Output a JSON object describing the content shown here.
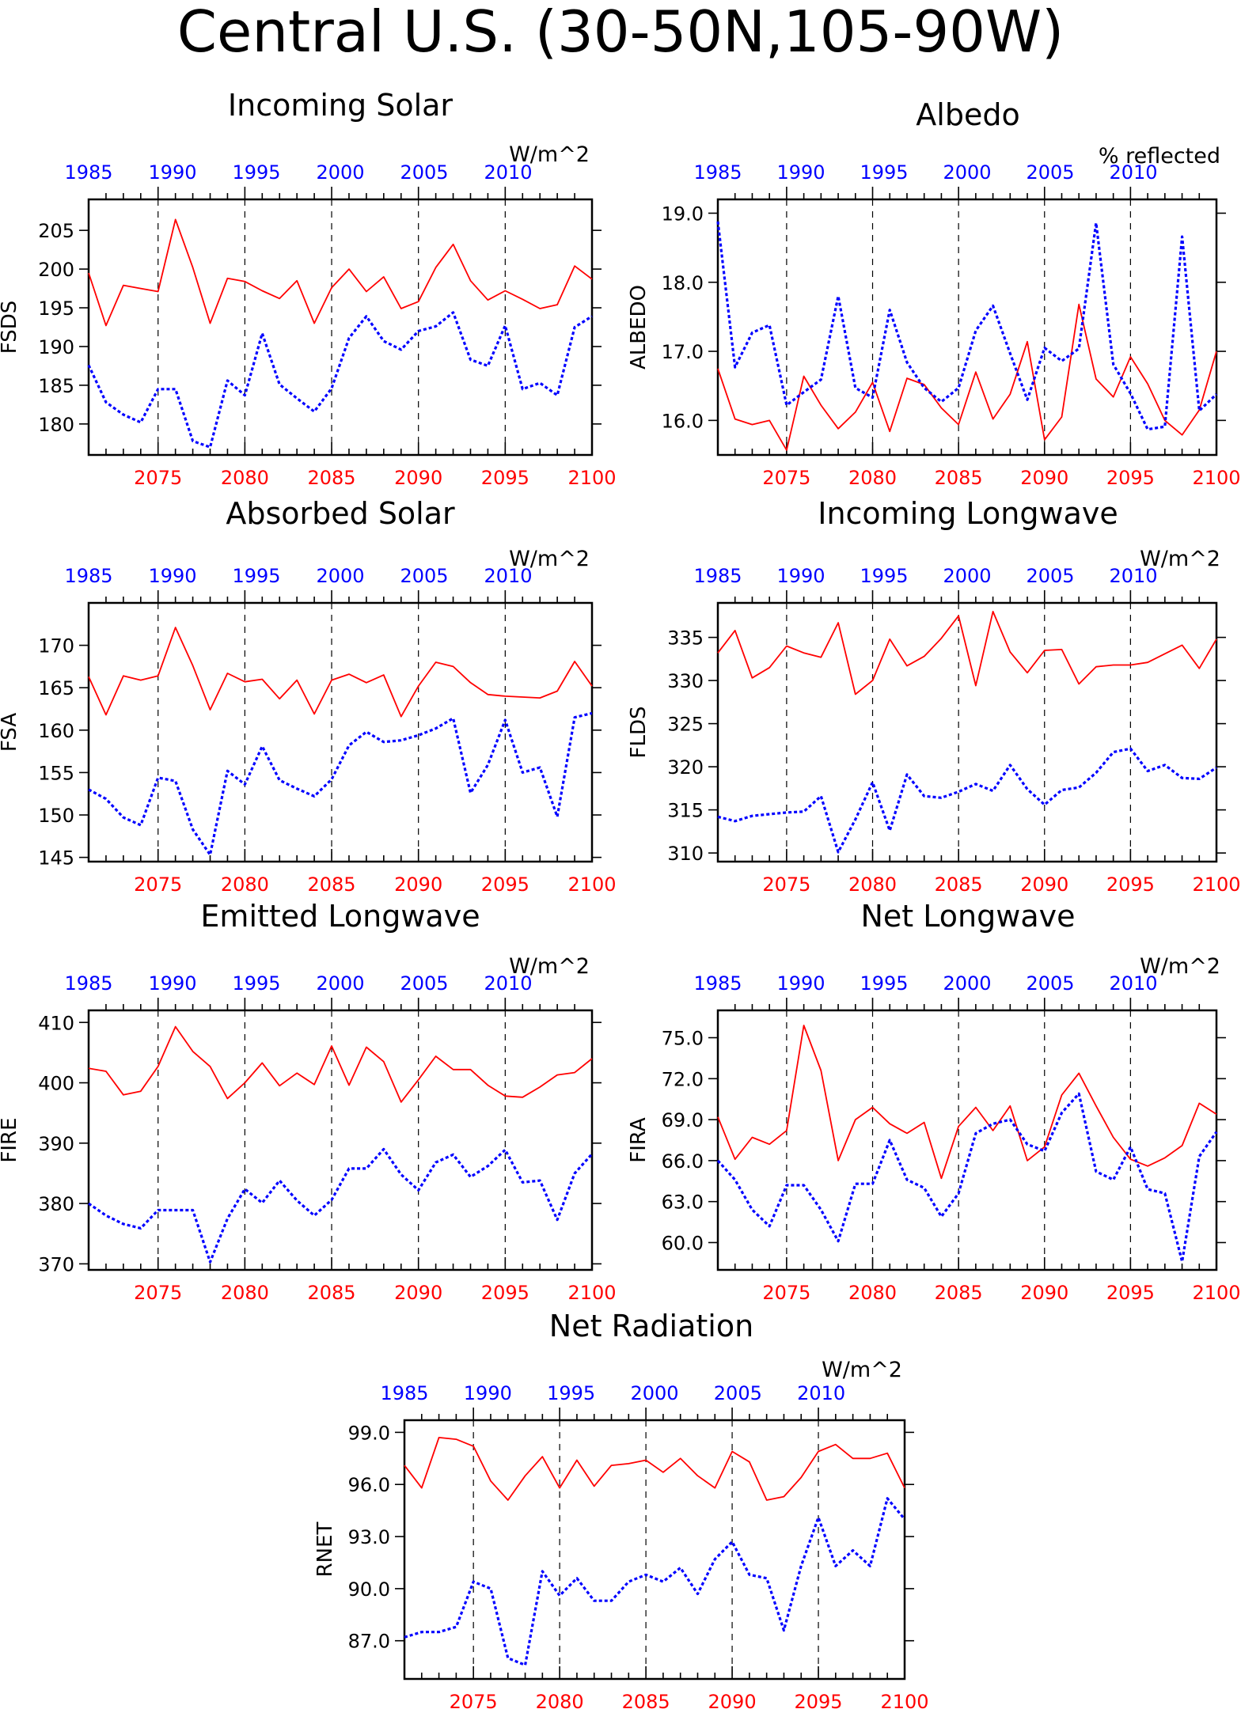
{
  "figure_title": "Central U.S. (30-50N,105-90W)",
  "colors": {
    "future_series": "#ff0000",
    "historical_series": "#0000ff",
    "axes": "#000000"
  },
  "chart_data": [
    {
      "type": "line",
      "title": "Incoming Solar",
      "units": "W/m^2",
      "ylabel": "FSDS",
      "ylim": [
        176,
        209
      ],
      "yticks": [
        180,
        185,
        190,
        195,
        200,
        205
      ],
      "ytick_labels": [
        "180",
        "185",
        "190",
        "195",
        "200",
        "205"
      ],
      "xlim": [
        2071,
        2100
      ],
      "bottom_ticks": [
        2075,
        2080,
        2085,
        2090,
        2095,
        2100
      ],
      "top_ticks": [
        1985,
        1990,
        1995,
        2000,
        2005,
        2010
      ],
      "series": [
        {
          "values": [
            199.5,
            192.7,
            197.9,
            197.5,
            197.1,
            206.4,
            200.2,
            193.0,
            198.8,
            198.4,
            197.2,
            196.2,
            198.5,
            193.0,
            197.6,
            200.0,
            197.1,
            199.0,
            194.9,
            195.8,
            200.2,
            203.2,
            198.5,
            196.0,
            197.2,
            196.1,
            194.9,
            195.4,
            200.4,
            198.7
          ]
        },
        {
          "values": [
            187.6,
            182.8,
            181.2,
            180.2,
            184.5,
            184.5,
            177.8,
            177.0,
            185.6,
            183.7,
            191.7,
            185.1,
            183.3,
            181.6,
            184.6,
            191.1,
            193.9,
            190.7,
            189.6,
            192.0,
            192.6,
            194.4,
            188.3,
            187.5,
            192.7,
            184.5,
            185.3,
            183.7,
            192.5,
            193.9
          ]
        }
      ]
    },
    {
      "type": "line",
      "title": "Albedo",
      "units": "% reflected",
      "ylabel": "ALBEDO",
      "ylim": [
        15.5,
        19.2
      ],
      "yticks": [
        16.0,
        17.0,
        18.0,
        19.0
      ],
      "ytick_labels": [
        "16.0",
        "17.0",
        "18.0",
        "19.0"
      ],
      "xlim": [
        2071,
        2100
      ],
      "bottom_ticks": [
        2075,
        2080,
        2085,
        2090,
        2095,
        2100
      ],
      "top_ticks": [
        1985,
        1990,
        1995,
        2000,
        2005,
        2010
      ],
      "series": [
        {
          "values": [
            16.75,
            16.02,
            15.94,
            16.0,
            15.57,
            16.64,
            16.22,
            15.88,
            16.12,
            16.55,
            15.84,
            16.61,
            16.52,
            16.18,
            15.94,
            16.7,
            16.02,
            16.38,
            17.14,
            15.72,
            16.05,
            17.68,
            16.6,
            16.34,
            16.92,
            16.53,
            16.0,
            15.79,
            16.15,
            17.0
          ]
        },
        {
          "values": [
            18.88,
            16.77,
            17.27,
            17.38,
            16.22,
            16.41,
            16.59,
            17.8,
            16.47,
            16.33,
            17.6,
            16.84,
            16.47,
            16.27,
            16.47,
            17.3,
            17.66,
            16.97,
            16.3,
            17.05,
            16.86,
            17.04,
            18.86,
            16.81,
            16.39,
            15.87,
            15.91,
            18.66,
            16.14,
            16.38
          ]
        }
      ]
    },
    {
      "type": "line",
      "title": "Absorbed Solar",
      "units": "W/m^2",
      "ylabel": "FSA",
      "ylim": [
        144.5,
        175
      ],
      "yticks": [
        145,
        150,
        155,
        160,
        165,
        170
      ],
      "ytick_labels": [
        "145",
        "150",
        "155",
        "160",
        "165",
        "170"
      ],
      "xlim": [
        2071,
        2100
      ],
      "bottom_ticks": [
        2075,
        2080,
        2085,
        2090,
        2095,
        2100
      ],
      "top_ticks": [
        1985,
        1990,
        1995,
        2000,
        2005,
        2010
      ],
      "series": [
        {
          "values": [
            166.3,
            161.8,
            166.4,
            165.9,
            166.4,
            172.1,
            167.6,
            162.4,
            166.7,
            165.7,
            166.0,
            163.7,
            165.9,
            161.9,
            165.9,
            166.6,
            165.6,
            166.5,
            161.6,
            165.2,
            168.0,
            167.5,
            165.6,
            164.2,
            164.0,
            163.9,
            163.8,
            164.6,
            168.1,
            165.2
          ]
        },
        {
          "values": [
            153.0,
            151.9,
            149.7,
            148.8,
            154.4,
            154.0,
            148.3,
            145.3,
            155.2,
            153.6,
            158.1,
            154.1,
            153.1,
            152.2,
            154.2,
            158.2,
            159.8,
            158.6,
            158.8,
            159.4,
            160.2,
            161.4,
            152.6,
            155.9,
            161.2,
            155.0,
            155.6,
            149.8,
            161.5,
            162.0
          ]
        }
      ]
    },
    {
      "type": "line",
      "title": "Incoming Longwave",
      "units": "W/m^2",
      "ylabel": "FLDS",
      "ylim": [
        309,
        339
      ],
      "yticks": [
        310,
        315,
        320,
        325,
        330,
        335
      ],
      "ytick_labels": [
        "310",
        "315",
        "320",
        "325",
        "330",
        "335"
      ],
      "xlim": [
        2071,
        2100
      ],
      "bottom_ticks": [
        2075,
        2080,
        2085,
        2090,
        2095,
        2100
      ],
      "top_ticks": [
        1985,
        1990,
        1995,
        2000,
        2005,
        2010
      ],
      "series": [
        {
          "values": [
            333.2,
            335.8,
            330.3,
            331.5,
            334.0,
            333.2,
            332.7,
            336.7,
            328.4,
            330.0,
            334.8,
            331.7,
            332.8,
            334.9,
            337.5,
            329.4,
            338.0,
            333.3,
            330.9,
            333.5,
            333.6,
            329.6,
            331.6,
            331.8,
            331.8,
            332.1,
            333.1,
            334.1,
            331.4,
            334.8
          ]
        },
        {
          "values": [
            314.2,
            313.7,
            314.3,
            314.5,
            314.7,
            314.8,
            316.6,
            310.1,
            313.9,
            318.2,
            312.6,
            319.1,
            316.6,
            316.4,
            317.1,
            318.0,
            317.2,
            320.2,
            317.4,
            315.6,
            317.3,
            317.6,
            319.3,
            321.7,
            322.1,
            319.5,
            320.2,
            318.7,
            318.6,
            319.9
          ]
        }
      ]
    },
    {
      "type": "line",
      "title": "Emitted Longwave",
      "units": "W/m^2",
      "ylabel": "FIRE",
      "ylim": [
        369,
        412
      ],
      "yticks": [
        370,
        380,
        390,
        400,
        410
      ],
      "ytick_labels": [
        "370",
        "380",
        "390",
        "400",
        "410"
      ],
      "xlim": [
        2071,
        2100
      ],
      "bottom_ticks": [
        2075,
        2080,
        2085,
        2090,
        2095,
        2100
      ],
      "top_ticks": [
        1985,
        1990,
        1995,
        2000,
        2005,
        2010
      ],
      "series": [
        {
          "values": [
            402.4,
            401.9,
            398.0,
            398.6,
            402.7,
            409.3,
            405.2,
            402.7,
            397.4,
            400.0,
            403.3,
            399.5,
            401.6,
            399.7,
            406.1,
            399.6,
            405.9,
            403.5,
            396.8,
            400.5,
            404.4,
            402.2,
            402.2,
            399.6,
            397.8,
            397.6,
            399.3,
            401.3,
            401.7,
            404.0
          ]
        },
        {
          "values": [
            380.0,
            378.0,
            376.6,
            375.9,
            378.9,
            378.9,
            378.9,
            370.3,
            377.5,
            382.4,
            380.1,
            383.8,
            380.5,
            378.0,
            380.6,
            385.8,
            385.8,
            389.0,
            384.8,
            382.2,
            386.8,
            388.1,
            384.4,
            386.2,
            388.9,
            383.5,
            383.8,
            377.3,
            385.0,
            388.2
          ]
        }
      ]
    },
    {
      "type": "line",
      "title": "Net Longwave",
      "units": "W/m^2",
      "ylabel": "FIRA",
      "ylim": [
        58,
        77
      ],
      "yticks": [
        60.0,
        63.0,
        66.0,
        69.0,
        72.0,
        75.0
      ],
      "ytick_labels": [
        "60.0",
        "63.0",
        "66.0",
        "69.0",
        "72.0",
        "75.0"
      ],
      "xlim": [
        2071,
        2100
      ],
      "bottom_ticks": [
        2075,
        2080,
        2085,
        2090,
        2095,
        2100
      ],
      "top_ticks": [
        1985,
        1990,
        1995,
        2000,
        2005,
        2010
      ],
      "series": [
        {
          "values": [
            69.2,
            66.1,
            67.7,
            67.2,
            68.2,
            75.9,
            72.6,
            66.0,
            69.0,
            69.9,
            68.7,
            68.0,
            68.8,
            64.7,
            68.5,
            69.9,
            68.2,
            70.0,
            66.0,
            67.0,
            70.8,
            72.4,
            70.0,
            67.7,
            66.1,
            65.6,
            66.2,
            67.1,
            70.2,
            69.4
          ]
        },
        {
          "values": [
            66.0,
            64.6,
            62.4,
            61.2,
            64.2,
            64.2,
            62.4,
            60.1,
            64.3,
            64.3,
            67.5,
            64.6,
            64.0,
            61.9,
            63.6,
            68.0,
            68.7,
            69.0,
            67.2,
            66.7,
            69.5,
            70.9,
            65.2,
            64.6,
            67.0,
            63.9,
            63.6,
            58.6,
            66.3,
            68.1
          ]
        }
      ]
    },
    {
      "type": "line",
      "title": "Net Radiation",
      "units": "W/m^2",
      "ylabel": "RNET",
      "ylim": [
        84.8,
        99.7
      ],
      "yticks": [
        87.0,
        90.0,
        93.0,
        96.0,
        99.0
      ],
      "ytick_labels": [
        "87.0",
        "90.0",
        "93.0",
        "96.0",
        "99.0"
      ],
      "xlim": [
        2071,
        2100
      ],
      "bottom_ticks": [
        2075,
        2080,
        2085,
        2090,
        2095,
        2100
      ],
      "top_ticks": [
        1985,
        1990,
        1995,
        2000,
        2005,
        2010
      ],
      "series": [
        {
          "values": [
            97.1,
            95.8,
            98.7,
            98.6,
            98.2,
            96.2,
            95.1,
            96.5,
            97.6,
            95.8,
            97.4,
            95.9,
            97.1,
            97.2,
            97.4,
            96.7,
            97.5,
            96.5,
            95.8,
            97.9,
            97.3,
            95.1,
            95.3,
            96.4,
            97.9,
            98.3,
            97.5,
            97.5,
            97.8,
            95.8
          ]
        },
        {
          "values": [
            87.2,
            87.5,
            87.5,
            87.8,
            90.4,
            90.0,
            86.0,
            85.6,
            91.0,
            89.6,
            90.6,
            89.3,
            89.3,
            90.4,
            90.8,
            90.4,
            91.2,
            89.7,
            91.7,
            92.7,
            90.8,
            90.6,
            87.6,
            91.3,
            94.1,
            91.3,
            92.2,
            91.3,
            95.2,
            94.0
          ]
        }
      ]
    }
  ]
}
